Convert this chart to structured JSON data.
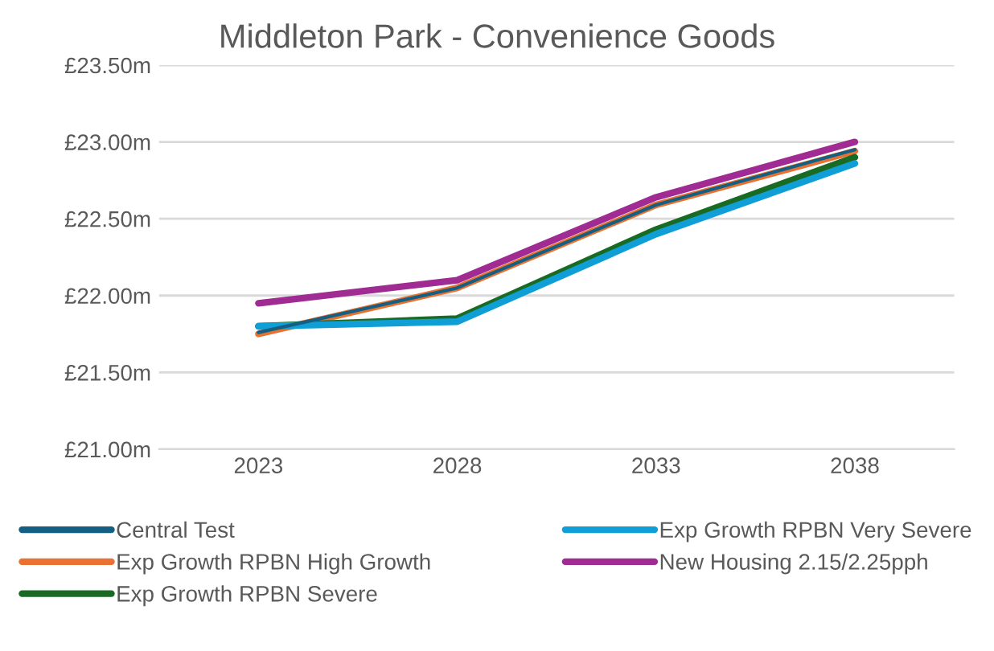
{
  "chart_data": {
    "type": "line",
    "title": "Middleton Park - Convenience Goods",
    "categories": [
      "2023",
      "2028",
      "2033",
      "2038"
    ],
    "series": [
      {
        "name": "Central Test",
        "color": "#156082",
        "values": [
          21.76,
          22.05,
          22.59,
          22.95
        ]
      },
      {
        "name": "Exp Growth RPBN High Growth",
        "color": "#e97132",
        "values": [
          21.75,
          22.05,
          22.59,
          22.94
        ]
      },
      {
        "name": "Exp Growth RPBN Severe",
        "color": "#196b24",
        "values": [
          21.8,
          21.85,
          22.43,
          22.9
        ]
      },
      {
        "name": "Exp Growth RPBN Very Severe",
        "color": "#0f9ed5",
        "values": [
          21.8,
          21.83,
          22.4,
          22.86
        ]
      },
      {
        "name": "New Housing 2.15/2.25pph",
        "color": "#a02b93",
        "values": [
          21.95,
          22.1,
          22.64,
          23.0
        ]
      }
    ],
    "ylim": [
      21.0,
      23.5
    ],
    "yticks": [
      {
        "value": 21.0,
        "label": "£21.00m"
      },
      {
        "value": 21.5,
        "label": "£21.50m"
      },
      {
        "value": 22.0,
        "label": "£22.00m"
      },
      {
        "value": 22.5,
        "label": "£22.50m"
      },
      {
        "value": 23.0,
        "label": "£23.00m"
      },
      {
        "value": 23.5,
        "label": "£23.50m"
      }
    ],
    "grid": "y",
    "legend": "bottom",
    "marker": "none",
    "line_style": "solid"
  }
}
